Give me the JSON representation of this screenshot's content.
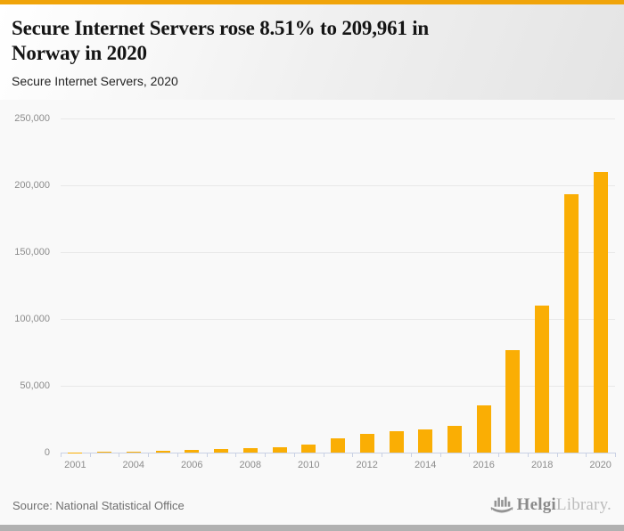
{
  "header": {
    "accent_color": "#F0A40A",
    "title": "Secure Internet Servers rose 8.51% to 209,961 in Norway in 2020",
    "title_lines": [
      "Secure Internet Servers rose 8.51% to 209,961 in",
      "Norway in 2020"
    ],
    "subtitle": "Secure Internet Servers, 2020"
  },
  "chart_data": {
    "type": "bar",
    "title": "Secure Internet Servers, 2020",
    "categories": [
      "2001",
      "2003",
      "2004",
      "2005",
      "2006",
      "2007",
      "2008",
      "2009",
      "2010",
      "2011",
      "2012",
      "2013",
      "2014",
      "2015",
      "2016",
      "2017",
      "2018",
      "2019",
      "2020"
    ],
    "values": [
      200,
      500,
      1000,
      1100,
      2000,
      2900,
      3600,
      4300,
      6300,
      10800,
      14100,
      16100,
      17400,
      20300,
      35400,
      76500,
      110300,
      193495,
      209961
    ],
    "visible_x_tick_labels": [
      "2001",
      "2004",
      "2006",
      "2008",
      "2010",
      "2012",
      "2014",
      "2016",
      "2018",
      "2020"
    ],
    "ylim": [
      0,
      250000
    ],
    "y_ticks": [
      0,
      50000,
      100000,
      150000,
      200000,
      250000
    ],
    "y_tick_labels": [
      "0",
      "50,000",
      "100,000",
      "150,000",
      "200,000",
      "250,000"
    ],
    "xlabel": "",
    "ylabel": "",
    "grid": true,
    "legend": false,
    "bar_color": "#FAAE04",
    "gridline_color": "#E8E8E8",
    "axis_color": "#C9D1E4",
    "plot_background": "#F9F9F9"
  },
  "footer": {
    "source": "Source: National Statistical Office",
    "brand_primary": "Helgi",
    "brand_secondary": "Library."
  }
}
